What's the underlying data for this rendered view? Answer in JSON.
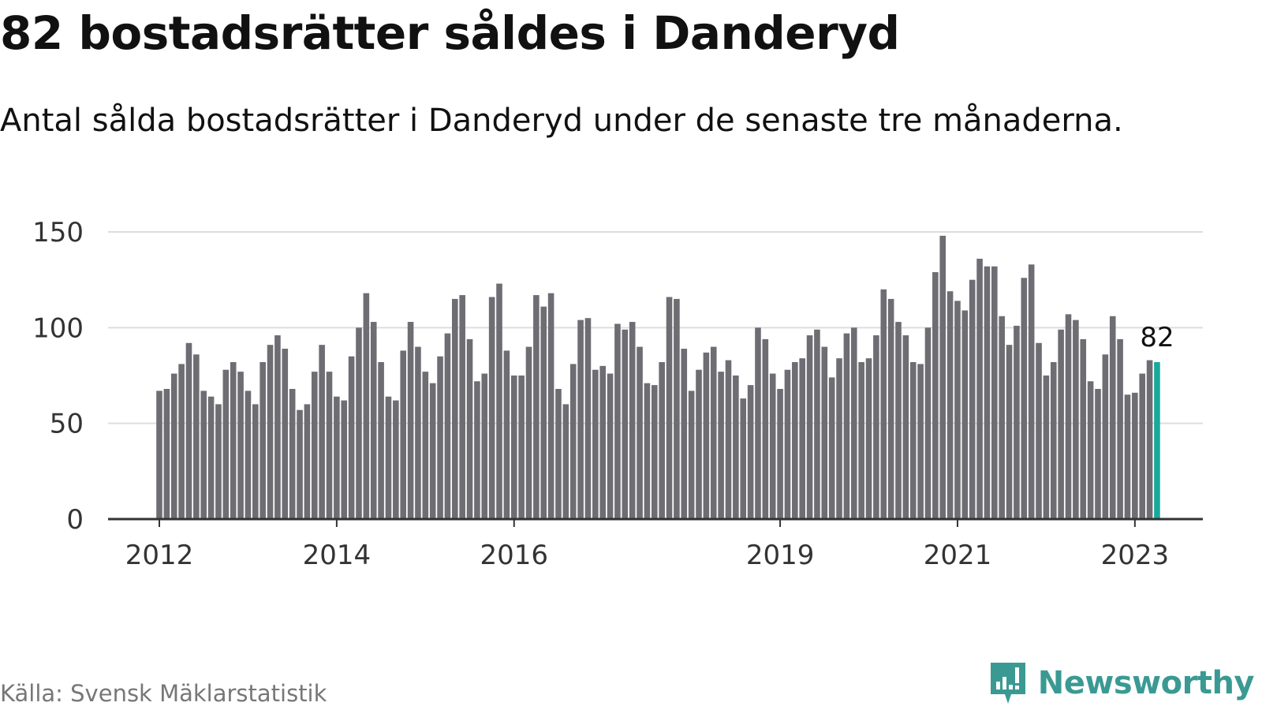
{
  "title": "82 bostadsrätter såldes i Danderyd",
  "subtitle": "Antal sålda bostadsrätter i Danderyd under de senaste tre månaderna.",
  "source": "Källa: Svensk Mäklarstatistik",
  "brand": {
    "name": "Newsworthy",
    "color": "#3a9a93"
  },
  "colors": {
    "bar": "#6e6d73",
    "highlight": "#1aa89b",
    "grid": "#dddddd",
    "axis": "#333333"
  },
  "chart_data": {
    "type": "bar",
    "title": "82 bostadsrätter såldes i Danderyd",
    "xlabel": "",
    "ylabel": "",
    "ylim": [
      0,
      150
    ],
    "yticks": [
      0,
      50,
      100,
      150
    ],
    "start_month": "2012-01",
    "x_ticks": [
      {
        "label": "2012",
        "index": 0
      },
      {
        "label": "2014",
        "index": 24
      },
      {
        "label": "2016",
        "index": 48
      },
      {
        "label": "2019",
        "index": 84
      },
      {
        "label": "2021",
        "index": 108
      },
      {
        "label": "2023",
        "index": 132
      }
    ],
    "values": [
      67,
      68,
      76,
      81,
      92,
      86,
      67,
      64,
      60,
      78,
      82,
      77,
      67,
      60,
      82,
      91,
      96,
      89,
      68,
      57,
      60,
      77,
      91,
      77,
      64,
      62,
      85,
      100,
      118,
      103,
      82,
      64,
      62,
      88,
      103,
      90,
      77,
      71,
      85,
      97,
      115,
      117,
      94,
      72,
      76,
      116,
      123,
      88,
      75,
      75,
      90,
      117,
      111,
      118,
      68,
      60,
      81,
      104,
      105,
      78,
      80,
      76,
      102,
      99,
      103,
      90,
      71,
      70,
      82,
      116,
      115,
      89,
      67,
      78,
      87,
      90,
      77,
      83,
      75,
      63,
      70,
      100,
      94,
      76,
      68,
      78,
      82,
      84,
      96,
      99,
      90,
      74,
      84,
      97,
      100,
      82,
      84,
      96,
      120,
      115,
      103,
      96,
      82,
      81,
      100,
      129,
      148,
      119,
      114,
      109,
      125,
      136,
      132,
      132,
      106,
      91,
      101,
      126,
      133,
      92,
      75,
      82,
      99,
      107,
      104,
      94,
      72,
      68,
      86,
      106,
      94,
      65,
      66,
      76,
      83,
      82
    ],
    "highlight_index": 135,
    "highlight_label": "82"
  }
}
